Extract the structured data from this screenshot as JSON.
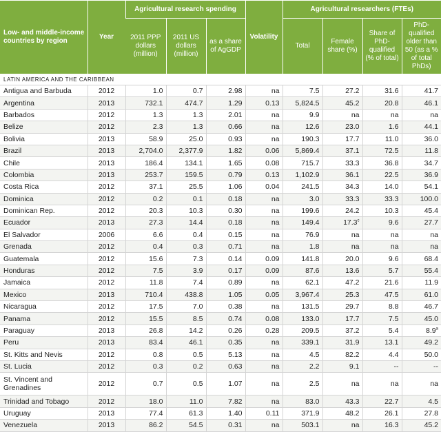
{
  "header": {
    "country": "Low- and middle-income countries by region",
    "year": "Year",
    "spending_group": "Agricultural research spending",
    "volatility": "Volatility",
    "researchers_group": "Agricultural researchers (FTEs)",
    "ppp": "2011 PPP dollars (million)",
    "usd": "2011 US dollars (million)",
    "share": "as a share of AgGDP",
    "total": "Total",
    "female": "Female share (%)",
    "phd": "Share of PhD-qualified (% of total)",
    "older": "PhD-qualified older than 50 (as a % of total PhDs)"
  },
  "region": "LATIN AMERICA AND THE CARIBBEAN",
  "rows": [
    {
      "country": "Antigua and Barbuda",
      "year": "2012",
      "ppp": "1.0",
      "usd": "0.7",
      "share": "2.98",
      "vol": "na",
      "total": "7.5",
      "female": "27.2",
      "female_sup": "",
      "phd": "31.6",
      "older": "41.7",
      "older_sup": ""
    },
    {
      "country": "Argentina",
      "year": "2013",
      "ppp": "732.1",
      "usd": "474.7",
      "share": "1.29",
      "vol": "0.13",
      "total": "5,824.5",
      "female": "45.2",
      "female_sup": "",
      "phd": "20.8",
      "older": "46.1",
      "older_sup": ""
    },
    {
      "country": "Barbados",
      "year": "2012",
      "ppp": "1.3",
      "usd": "1.3",
      "share": "2.01",
      "vol": "na",
      "total": "9.9",
      "female": "na",
      "female_sup": "",
      "phd": "na",
      "older": "na",
      "older_sup": ""
    },
    {
      "country": "Belize",
      "year": "2012",
      "ppp": "2.3",
      "usd": "1.3",
      "share": "0.66",
      "vol": "na",
      "total": "12.6",
      "female": "23.0",
      "female_sup": "",
      "phd": "1.6",
      "older": "44.1",
      "older_sup": ""
    },
    {
      "country": "Bolivia",
      "year": "2013",
      "ppp": "58.9",
      "usd": "25.0",
      "share": "0.93",
      "vol": "na",
      "total": "190.3",
      "female": "17.7",
      "female_sup": "",
      "phd": "11.0",
      "older": "36.0",
      "older_sup": ""
    },
    {
      "country": "Brazil",
      "year": "2013",
      "ppp": "2,704.0",
      "usd": "2,377.9",
      "share": "1.82",
      "vol": "0.06",
      "total": "5,869.4",
      "female": "37.1",
      "female_sup": "",
      "phd": "72.5",
      "older": "11.8",
      "older_sup": ""
    },
    {
      "country": "Chile",
      "year": "2013",
      "ppp": "186.4",
      "usd": "134.1",
      "share": "1.65",
      "vol": "0.08",
      "total": "715.7",
      "female": "33.3",
      "female_sup": "",
      "phd": "36.8",
      "older": "34.7",
      "older_sup": ""
    },
    {
      "country": "Colombia",
      "year": "2013",
      "ppp": "253.7",
      "usd": "159.5",
      "share": "0.79",
      "vol": "0.13",
      "total": "1,102.9",
      "female": "36.1",
      "female_sup": "",
      "phd": "22.5",
      "older": "36.9",
      "older_sup": ""
    },
    {
      "country": "Costa Rica",
      "year": "2012",
      "ppp": "37.1",
      "usd": "25.5",
      "share": "1.06",
      "vol": "0.04",
      "total": "241.5",
      "female": "34.3",
      "female_sup": "",
      "phd": "14.0",
      "older": "54.1",
      "older_sup": ""
    },
    {
      "country": "Dominica",
      "year": "2012",
      "ppp": "0.2",
      "usd": "0.1",
      "share": "0.18",
      "vol": "na",
      "total": "3.0",
      "female": "33.3",
      "female_sup": "",
      "phd": "33.3",
      "older": "100.0",
      "older_sup": ""
    },
    {
      "country": "Dominican Rep.",
      "year": "2012",
      "ppp": "20.3",
      "usd": "10.3",
      "share": "0.30",
      "vol": "na",
      "total": "199.6",
      "female": "24.2",
      "female_sup": "",
      "phd": "10.3",
      "older": "45.4",
      "older_sup": ""
    },
    {
      "country": "Ecuador",
      "year": "2013",
      "ppp": "27.3",
      "usd": "14.4",
      "share": "0.18",
      "vol": "na",
      "total": "149.4",
      "female": "17.3",
      "female_sup": "c",
      "phd": "9.6",
      "older": "27.7",
      "older_sup": ""
    },
    {
      "country": "El Salvador",
      "year": "2006",
      "ppp": "6.6",
      "usd": "0.4",
      "share": "0.15",
      "vol": "na",
      "total": "76.9",
      "female": "na",
      "female_sup": "",
      "phd": "na",
      "older": "na",
      "older_sup": ""
    },
    {
      "country": "Grenada",
      "year": "2012",
      "ppp": "0.4",
      "usd": "0.3",
      "share": "0.71",
      "vol": "na",
      "total": "1.8",
      "female": "na",
      "female_sup": "",
      "phd": "na",
      "older": "na",
      "older_sup": ""
    },
    {
      "country": "Guatemala",
      "year": "2012",
      "ppp": "15.6",
      "usd": "7.3",
      "share": "0.14",
      "vol": "0.09",
      "total": "141.8",
      "female": "20.0",
      "female_sup": "",
      "phd": "9.6",
      "older": "68.4",
      "older_sup": ""
    },
    {
      "country": "Honduras",
      "year": "2012",
      "ppp": "7.5",
      "usd": "3.9",
      "share": "0.17",
      "vol": "0.09",
      "total": "87.6",
      "female": "13.6",
      "female_sup": "",
      "phd": "5.7",
      "older": "55.4",
      "older_sup": ""
    },
    {
      "country": "Jamaica",
      "year": "2012",
      "ppp": "11.8",
      "usd": "7.4",
      "share": "0.89",
      "vol": "na",
      "total": "62.1",
      "female": "47.2",
      "female_sup": "",
      "phd": "21.6",
      "older": "11.9",
      "older_sup": ""
    },
    {
      "country": "Mexico",
      "year": "2013",
      "ppp": "710.4",
      "usd": "438.8",
      "share": "1.05",
      "vol": "0.05",
      "total": "3,967.4",
      "female": "25.3",
      "female_sup": "",
      "phd": "47.5",
      "older": "61.0",
      "older_sup": ""
    },
    {
      "country": "Nicaragua",
      "year": "2012",
      "ppp": "17.5",
      "usd": "7.0",
      "share": "0.38",
      "vol": "na",
      "total": "131.5",
      "female": "29.7",
      "female_sup": "",
      "phd": "8.8",
      "older": "46.7",
      "older_sup": ""
    },
    {
      "country": "Panama",
      "year": "2012",
      "ppp": "15.5",
      "usd": "8.5",
      "share": "0.74",
      "vol": "0.08",
      "total": "133.0",
      "female": "17.7",
      "female_sup": "",
      "phd": "7.5",
      "older": "45.0",
      "older_sup": ""
    },
    {
      "country": "Paraguay",
      "year": "2013",
      "ppp": "26.8",
      "usd": "14.2",
      "share": "0.26",
      "vol": "0.28",
      "total": "209.5",
      "female": "37.2",
      "female_sup": "",
      "phd": "5.4",
      "older": "8.9",
      "older_sup": "a"
    },
    {
      "country": "Peru",
      "year": "2013",
      "ppp": "83.4",
      "usd": "46.1",
      "share": "0.35",
      "vol": "na",
      "total": "339.1",
      "female": "31.9",
      "female_sup": "",
      "phd": "13.1",
      "older": "49.2",
      "older_sup": ""
    },
    {
      "country": "St. Kitts and Nevis",
      "year": "2012",
      "ppp": "0.8",
      "usd": "0.5",
      "share": "5.13",
      "vol": "na",
      "total": "4.5",
      "female": "82.2",
      "female_sup": "",
      "phd": "4.4",
      "older": "50.0",
      "older_sup": ""
    },
    {
      "country": "St. Lucia",
      "year": "2012",
      "ppp": "0.3",
      "usd": "0.2",
      "share": "0.63",
      "vol": "na",
      "total": "2.2",
      "female": "9.1",
      "female_sup": "",
      "phd": "--",
      "older": "--",
      "older_sup": ""
    },
    {
      "country": "St. Vincent and Grenadines",
      "year": "2012",
      "ppp": "0.7",
      "usd": "0.5",
      "share": "1.07",
      "vol": "na",
      "total": "2.5",
      "female": "na",
      "female_sup": "",
      "phd": "na",
      "older": "na",
      "older_sup": "",
      "tall": true
    },
    {
      "country": "Trinidad and Tobago",
      "year": "2012",
      "ppp": "18.0",
      "usd": "11.0",
      "share": "7.82",
      "vol": "na",
      "total": "83.0",
      "female": "43.3",
      "female_sup": "",
      "phd": "22.7",
      "older": "4.5",
      "older_sup": ""
    },
    {
      "country": "Uruguay",
      "year": "2013",
      "ppp": "77.4",
      "usd": "61.3",
      "share": "1.40",
      "vol": "0.11",
      "total": "371.9",
      "female": "48.2",
      "female_sup": "",
      "phd": "26.1",
      "older": "27.8",
      "older_sup": ""
    },
    {
      "country": "Venezuela",
      "year": "2013",
      "ppp": "86.2",
      "usd": "54.5",
      "share": "0.31",
      "vol": "na",
      "total": "503.1",
      "female": "na",
      "female_sup": "",
      "phd": "16.3",
      "older": "45.2",
      "older_sup": ""
    }
  ]
}
